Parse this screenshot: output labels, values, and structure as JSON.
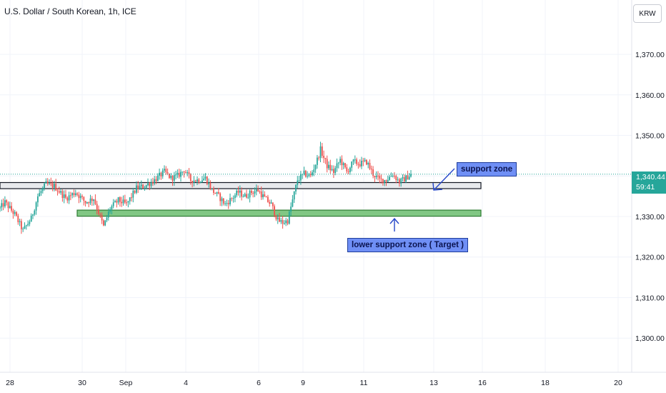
{
  "header": {
    "title": "U.S. Dollar / South Korean, 1h, ICE"
  },
  "currency_button": {
    "label": "KRW"
  },
  "price_tag": {
    "price": "1,340.44",
    "countdown": "59:41"
  },
  "annotations": {
    "support": "support zone",
    "lower_support": "lower support zone ( Target )"
  },
  "colors": {
    "up": "#26a69a",
    "down": "#ef5350",
    "support_zone": "#2e7d32",
    "lower_zone": "#43a047",
    "annotation_bg": "#6f8ff5",
    "arrow": "#2446c9"
  },
  "chart_data": {
    "type": "candlestick",
    "title": "U.S. Dollar / South Korean, 1h, ICE",
    "ylim": [
      1293,
      1385
    ],
    "y_ticks": [
      1300,
      1310,
      1320,
      1330,
      1340,
      1350,
      1360,
      1370
    ],
    "y_tick_labels": [
      "1,300.00",
      "1,310.00",
      "1,320.00",
      "1,330.00",
      "1,340.00",
      "1,350.00",
      "1,360.00",
      "1,370.00"
    ],
    "x_ticks": [
      "28",
      "30",
      "Sep",
      "4",
      "6",
      "9",
      "11",
      "13",
      "16",
      "18",
      "20"
    ],
    "current_price": 1340.44,
    "zones": [
      {
        "name": "support zone",
        "low": 1337.4,
        "high": 1338.2
      },
      {
        "name": "lower support zone ( Target )",
        "low": 1330.6,
        "high": 1331.4
      }
    ],
    "price_path": [
      [
        0,
        1332.0
      ],
      [
        3,
        1333.5
      ],
      [
        9,
        1330.5
      ],
      [
        14,
        1326.5
      ],
      [
        19,
        1329.5
      ],
      [
        23,
        1335.0
      ],
      [
        28,
        1338.0
      ],
      [
        33,
        1337.5
      ],
      [
        40,
        1334.5
      ],
      [
        46,
        1336.0
      ],
      [
        52,
        1333.5
      ],
      [
        57,
        1334.5
      ],
      [
        63,
        1327.5
      ],
      [
        67,
        1332.0
      ],
      [
        72,
        1334.0
      ],
      [
        77,
        1333.0
      ],
      [
        83,
        1337.0
      ],
      [
        88,
        1337.5
      ],
      [
        94,
        1339.0
      ],
      [
        100,
        1341.0
      ],
      [
        104,
        1339.5
      ],
      [
        108,
        1340.0
      ],
      [
        112,
        1341.5
      ],
      [
        116,
        1339.0
      ],
      [
        121,
        1339.0
      ],
      [
        125,
        1339.5
      ],
      [
        129,
        1336.5
      ],
      [
        133,
        1335.0
      ],
      [
        137,
        1333.0
      ],
      [
        141,
        1334.5
      ],
      [
        145,
        1336.0
      ],
      [
        149,
        1335.0
      ],
      [
        153,
        1336.0
      ],
      [
        157,
        1336.5
      ],
      [
        161,
        1334.5
      ],
      [
        165,
        1333.0
      ],
      [
        169,
        1329.0
      ],
      [
        172,
        1328.5
      ],
      [
        175,
        1329.0
      ],
      [
        178,
        1334.0
      ],
      [
        181,
        1339.0
      ],
      [
        185,
        1340.5
      ],
      [
        189,
        1340.0
      ],
      [
        193,
        1344.0
      ],
      [
        195,
        1346.5
      ],
      [
        199,
        1342.5
      ],
      [
        203,
        1341.0
      ],
      [
        207,
        1344.0
      ],
      [
        211,
        1341.0
      ],
      [
        215,
        1343.5
      ],
      [
        219,
        1343.0
      ],
      [
        223,
        1343.5
      ],
      [
        227,
        1340.5
      ],
      [
        231,
        1339.0
      ],
      [
        235,
        1339.0
      ],
      [
        239,
        1340.5
      ],
      [
        243,
        1338.5
      ],
      [
        247,
        1339.5
      ],
      [
        250,
        1340.44
      ]
    ]
  }
}
